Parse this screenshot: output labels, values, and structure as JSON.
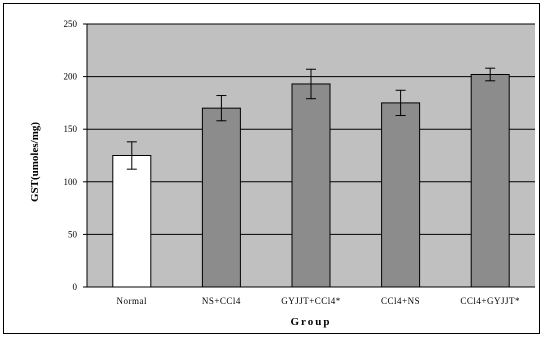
{
  "chart_data": {
    "type": "bar",
    "title": "",
    "xlabel": "Group",
    "ylabel": "GST(umoles/mg)",
    "categories": [
      "Normal",
      "NS+CCl4",
      "GYJJT+CCl4*",
      "CCl4+NS",
      "CCl4+GYJJT*"
    ],
    "series": [
      {
        "values": [
          125,
          170,
          193,
          175,
          202
        ],
        "error": [
          13,
          12,
          14,
          12,
          6
        ]
      }
    ],
    "bar_colors": [
      "#ffffff",
      "#8c8c8c",
      "#8c8c8c",
      "#8c8c8c",
      "#8c8c8c"
    ],
    "ylim": [
      0,
      250
    ],
    "yticks": [
      0,
      50,
      100,
      150,
      200,
      250
    ],
    "grid": true,
    "plot_background": "#c0c0c0",
    "legend": "none"
  }
}
